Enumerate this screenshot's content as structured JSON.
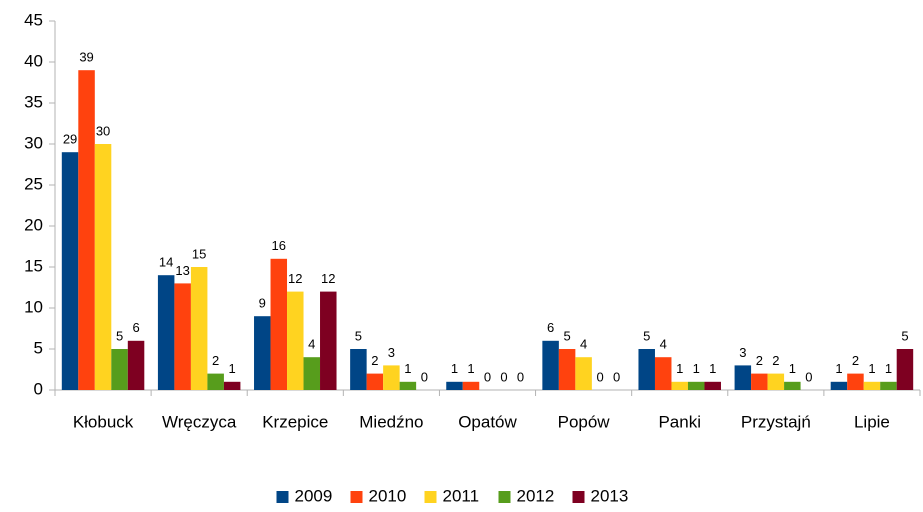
{
  "chart_data": {
    "type": "bar",
    "categories": [
      "Kłobuck",
      "Wręczyca",
      "Krzepice",
      "Miedźno",
      "Opatów",
      "Popów",
      "Panki",
      "Przystajń",
      "Lipie"
    ],
    "series": [
      {
        "name": "2009",
        "color": "#004586",
        "values": [
          29,
          14,
          9,
          5,
          1,
          6,
          5,
          3,
          1
        ]
      },
      {
        "name": "2010",
        "color": "#ff420e",
        "values": [
          39,
          13,
          16,
          2,
          1,
          5,
          4,
          2,
          2
        ]
      },
      {
        "name": "2011",
        "color": "#ffd320",
        "values": [
          30,
          15,
          12,
          3,
          0,
          4,
          1,
          2,
          1
        ]
      },
      {
        "name": "2012",
        "color": "#579d1c",
        "values": [
          5,
          2,
          4,
          1,
          0,
          0,
          1,
          1,
          1
        ]
      },
      {
        "name": "2013",
        "color": "#7e0021",
        "values": [
          6,
          1,
          12,
          0,
          0,
          0,
          1,
          0,
          5
        ]
      }
    ],
    "ylim": [
      0,
      45
    ],
    "yticks": [
      0,
      5,
      10,
      15,
      20,
      25,
      30,
      35,
      40,
      45
    ],
    "grid": false,
    "legend": "bottom"
  }
}
